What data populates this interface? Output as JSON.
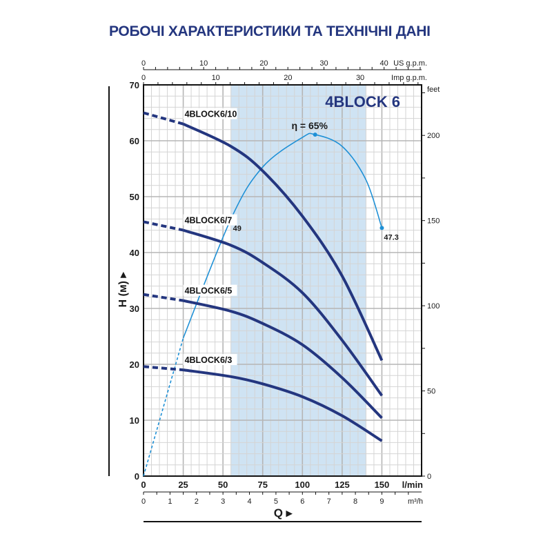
{
  "page": {
    "title": "РОБОЧІ ХАРАКТЕРИСТИКИ ТА ТЕХНІЧНІ ДАНІ"
  },
  "colors": {
    "curve": "#24367f",
    "efficiency": "#1e90d6",
    "shade": "#cfe3f3",
    "grid_minor": "#d4d4d4",
    "grid_major": "#b5b5b5",
    "text": "#1a1a1a",
    "brand": "#24367f"
  },
  "chart_data": {
    "type": "line",
    "title": "4BLOCK 6",
    "xlabel": "Q",
    "ylabel": "H (м)",
    "x_unit": "l/min",
    "xlim": [
      0,
      175
    ],
    "ylim": [
      0,
      70
    ],
    "grid": true,
    "x_ticks": [
      0,
      25,
      50,
      75,
      100,
      125,
      150
    ],
    "y_ticks": [
      0,
      10,
      20,
      30,
      40,
      50,
      60,
      70
    ],
    "secondary_axes": {
      "top_us_gpm": {
        "label": "US g.p.m.",
        "ticks": [
          0,
          10,
          20,
          30,
          40
        ]
      },
      "top_imp_gpm": {
        "label": "Imp g.p.m.",
        "ticks": [
          0,
          10,
          20,
          30
        ]
      },
      "right_feet": {
        "label": "feet",
        "ticks": [
          0,
          50,
          100,
          150,
          200
        ]
      },
      "bottom_m3h": {
        "label": "m³/h",
        "ticks": [
          0,
          1,
          2,
          3,
          4,
          5,
          6,
          7,
          8,
          9
        ]
      }
    },
    "recommended_range": {
      "from": 55,
      "to": 140
    },
    "series": [
      {
        "name": "4BLOCK6/10",
        "dashed_until": 25,
        "x": [
          0,
          25,
          55,
          75,
          100,
          125,
          150
        ],
        "y": [
          65.0,
          63.0,
          59.0,
          54.6,
          46.5,
          35.8,
          20.7
        ]
      },
      {
        "name": "4BLOCK6/7",
        "dashed_until": 25,
        "x": [
          0,
          25,
          55,
          75,
          100,
          125,
          150
        ],
        "y": [
          45.5,
          44.0,
          41.3,
          38.2,
          32.8,
          24.3,
          14.4
        ]
      },
      {
        "name": "4BLOCK6/5",
        "dashed_until": 25,
        "x": [
          0,
          25,
          55,
          75,
          100,
          125,
          150
        ],
        "y": [
          32.5,
          31.4,
          29.5,
          27.3,
          23.5,
          17.6,
          10.4
        ]
      },
      {
        "name": "4BLOCK6/3",
        "dashed_until": 25,
        "x": [
          0,
          25,
          55,
          75,
          100,
          125,
          150
        ],
        "y": [
          19.6,
          19.0,
          17.8,
          16.5,
          14.2,
          10.8,
          6.3
        ]
      }
    ],
    "efficiency": {
      "label": "η = 65%",
      "dashed_until": 25,
      "x": [
        0,
        25,
        55,
        75,
        100,
        108,
        125,
        140,
        150
      ],
      "y": [
        0,
        24.7,
        46.0,
        55.3,
        60.6,
        61.1,
        59.0,
        53.0,
        44.4
      ],
      "markers": [
        {
          "x": 55,
          "y": 46.0,
          "label": "49"
        },
        {
          "x": 108,
          "y": 61.1,
          "label": ""
        },
        {
          "x": 150,
          "y": 44.4,
          "label": "47.3"
        }
      ],
      "peak_value_pct": 65
    }
  }
}
